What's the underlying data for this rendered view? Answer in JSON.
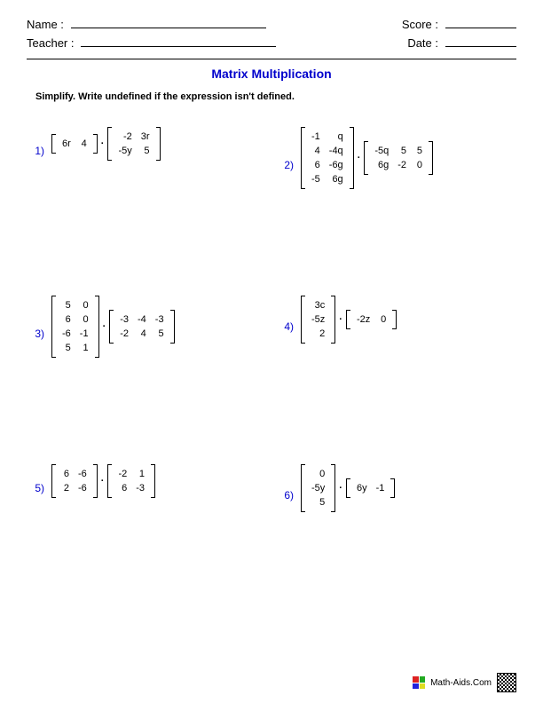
{
  "header": {
    "name_label": "Name :",
    "teacher_label": "Teacher :",
    "score_label": "Score :",
    "date_label": "Date :"
  },
  "title": "Matrix Multiplication",
  "instructions": "Simplify. Write undefined if the expression isn't defined.",
  "dot": "·",
  "colors": {
    "title": "#0000cc",
    "number": "#0000cc",
    "text": "#000000",
    "background": "#ffffff"
  },
  "fontsize": {
    "title": 14,
    "body": 11,
    "header": 13
  },
  "problems": [
    {
      "n": "1)",
      "A": {
        "rows": 1,
        "cols": 2,
        "cells": [
          "6r",
          "4"
        ]
      },
      "B": {
        "rows": 2,
        "cols": 2,
        "cells": [
          "-2",
          "3r",
          "-5y",
          "5"
        ]
      }
    },
    {
      "n": "2)",
      "A": {
        "rows": 4,
        "cols": 2,
        "cells": [
          "-1",
          "q",
          "4",
          "-4q",
          "6",
          "-6g",
          "-5",
          "6g"
        ]
      },
      "B": {
        "rows": 2,
        "cols": 3,
        "cells": [
          "-5q",
          "5",
          "5",
          "6g",
          "-2",
          "0"
        ]
      }
    },
    {
      "n": "3)",
      "A": {
        "rows": 4,
        "cols": 2,
        "cells": [
          "5",
          "0",
          "6",
          "0",
          "-6",
          "-1",
          "5",
          "1"
        ]
      },
      "B": {
        "rows": 2,
        "cols": 3,
        "cells": [
          "-3",
          "-4",
          "-3",
          "-2",
          "4",
          "5"
        ]
      }
    },
    {
      "n": "4)",
      "A": {
        "rows": 3,
        "cols": 1,
        "cells": [
          "3c",
          "-5z",
          "2"
        ]
      },
      "B": {
        "rows": 1,
        "cols": 2,
        "cells": [
          "-2z",
          "0"
        ]
      }
    },
    {
      "n": "5)",
      "A": {
        "rows": 2,
        "cols": 2,
        "cells": [
          "6",
          "-6",
          "2",
          "-6"
        ]
      },
      "B": {
        "rows": 2,
        "cols": 2,
        "cells": [
          "-2",
          "1",
          "6",
          "-3"
        ]
      }
    },
    {
      "n": "6)",
      "A": {
        "rows": 3,
        "cols": 1,
        "cells": [
          "0",
          "-5y",
          "5"
        ]
      },
      "B": {
        "rows": 1,
        "cols": 2,
        "cells": [
          "6y",
          "-1"
        ]
      }
    }
  ],
  "footer": {
    "site": "Math-Aids.Com"
  }
}
